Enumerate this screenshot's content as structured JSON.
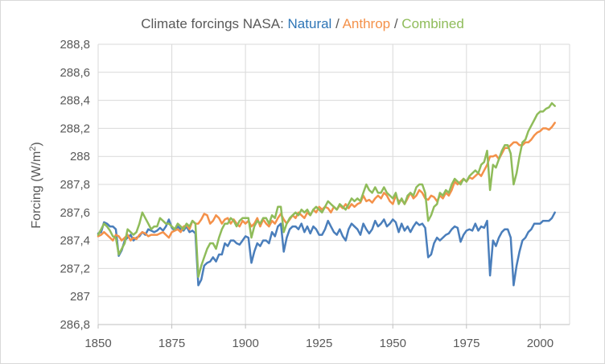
{
  "chart_data": {
    "type": "line",
    "title_parts": [
      {
        "text": "Climate forcings NASA: ",
        "color": "#595959"
      },
      {
        "text": "Natural",
        "color": "#2e75b6"
      },
      {
        "text": " / ",
        "color": "#595959"
      },
      {
        "text": "Anthrop",
        "color": "#f4914a"
      },
      {
        "text": " / ",
        "color": "#595959"
      },
      {
        "text": "Combined",
        "color": "#8fbc5a"
      }
    ],
    "ylabel_main": "Forcing (W/m",
    "ylabel_sup": "2",
    "ylabel_end": ")",
    "xlabel": "",
    "xlim": [
      1850,
      2010
    ],
    "ylim": [
      286.8,
      288.8
    ],
    "x_ticks": [
      1850,
      1875,
      1900,
      1925,
      1950,
      1975,
      2000
    ],
    "y_ticks": [
      "286,8",
      "287",
      "287,2",
      "287,4",
      "287,6",
      "287,8",
      "288",
      "288,2",
      "288,4",
      "288,6",
      "288,8"
    ],
    "y_tick_values": [
      286.8,
      287.0,
      287.2,
      287.4,
      287.6,
      287.8,
      288.0,
      288.2,
      288.4,
      288.6,
      288.8
    ],
    "grid": true,
    "series": [
      {
        "name": "Natural",
        "color": "#4a7ebb",
        "x": [
          1850,
          1851,
          1852,
          1853,
          1854,
          1855,
          1856,
          1857,
          1858,
          1859,
          1860,
          1861,
          1862,
          1863,
          1864,
          1865,
          1866,
          1867,
          1868,
          1869,
          1870,
          1871,
          1872,
          1873,
          1874,
          1875,
          1876,
          1877,
          1878,
          1879,
          1880,
          1881,
          1882,
          1883,
          1884,
          1885,
          1886,
          1887,
          1888,
          1889,
          1890,
          1891,
          1892,
          1893,
          1894,
          1895,
          1896,
          1897,
          1898,
          1899,
          1900,
          1901,
          1902,
          1903,
          1904,
          1905,
          1906,
          1907,
          1908,
          1909,
          1910,
          1911,
          1912,
          1913,
          1914,
          1915,
          1916,
          1917,
          1918,
          1919,
          1920,
          1921,
          1922,
          1923,
          1924,
          1925,
          1926,
          1927,
          1928,
          1929,
          1930,
          1931,
          1932,
          1933,
          1934,
          1935,
          1936,
          1937,
          1938,
          1939,
          1940,
          1941,
          1942,
          1943,
          1944,
          1945,
          1946,
          1947,
          1948,
          1949,
          1950,
          1951,
          1952,
          1953,
          1954,
          1955,
          1956,
          1957,
          1958,
          1959,
          1960,
          1961,
          1962,
          1963,
          1964,
          1965,
          1966,
          1967,
          1968,
          1969,
          1970,
          1971,
          1972,
          1973,
          1974,
          1975,
          1976,
          1977,
          1978,
          1979,
          1980,
          1981,
          1982,
          1983,
          1984,
          1985,
          1986,
          1987,
          1988,
          1989,
          1990,
          1991,
          1992,
          1993,
          1994,
          1995,
          1996,
          1997,
          1998,
          1999,
          2000,
          2001,
          2002,
          2003,
          2004,
          2005
        ],
        "values": [
          287.45,
          287.46,
          287.53,
          287.52,
          287.5,
          287.5,
          287.48,
          287.29,
          287.33,
          287.4,
          287.42,
          287.44,
          287.4,
          287.42,
          287.43,
          287.46,
          287.44,
          287.48,
          287.47,
          287.46,
          287.47,
          287.49,
          287.47,
          287.5,
          287.55,
          287.49,
          287.47,
          287.5,
          287.48,
          287.47,
          287.5,
          287.46,
          287.47,
          287.45,
          287.08,
          287.12,
          287.22,
          287.24,
          287.25,
          287.28,
          287.25,
          287.3,
          287.3,
          287.38,
          287.36,
          287.4,
          287.4,
          287.38,
          287.37,
          287.4,
          287.43,
          287.42,
          287.24,
          287.32,
          287.38,
          287.36,
          287.4,
          287.4,
          287.38,
          287.46,
          287.43,
          287.5,
          287.52,
          287.32,
          287.42,
          287.48,
          287.5,
          287.5,
          287.48,
          287.52,
          287.46,
          287.5,
          287.45,
          287.5,
          287.48,
          287.44,
          287.44,
          287.48,
          287.54,
          287.5,
          287.46,
          287.44,
          287.48,
          287.43,
          287.4,
          287.48,
          287.52,
          287.5,
          287.48,
          287.44,
          287.52,
          287.48,
          287.45,
          287.48,
          287.54,
          287.5,
          287.52,
          287.55,
          287.5,
          287.52,
          287.55,
          287.53,
          287.46,
          287.52,
          287.47,
          287.5,
          287.46,
          287.5,
          287.53,
          287.51,
          287.52,
          287.49,
          287.28,
          287.3,
          287.38,
          287.42,
          287.4,
          287.42,
          287.44,
          287.45,
          287.48,
          287.5,
          287.49,
          287.39,
          287.44,
          287.47,
          287.48,
          287.47,
          287.52,
          287.47,
          287.5,
          287.49,
          287.54,
          287.15,
          287.4,
          287.36,
          287.42,
          287.46,
          287.48,
          287.48,
          287.42,
          287.08,
          287.22,
          287.32,
          287.4,
          287.42,
          287.46,
          287.48,
          287.52,
          287.52,
          287.52,
          287.54,
          287.54,
          287.54,
          287.56,
          287.6
        ]
      },
      {
        "name": "Anthrop",
        "color": "#f4914a",
        "x": [
          1850,
          1851,
          1852,
          1853,
          1854,
          1855,
          1856,
          1857,
          1858,
          1859,
          1860,
          1861,
          1862,
          1863,
          1864,
          1865,
          1866,
          1867,
          1868,
          1869,
          1870,
          1871,
          1872,
          1873,
          1874,
          1875,
          1876,
          1877,
          1878,
          1879,
          1880,
          1881,
          1882,
          1883,
          1884,
          1885,
          1886,
          1887,
          1888,
          1889,
          1890,
          1891,
          1892,
          1893,
          1894,
          1895,
          1896,
          1897,
          1898,
          1899,
          1900,
          1901,
          1902,
          1903,
          1904,
          1905,
          1906,
          1907,
          1908,
          1909,
          1910,
          1911,
          1912,
          1913,
          1914,
          1915,
          1916,
          1917,
          1918,
          1919,
          1920,
          1921,
          1922,
          1923,
          1924,
          1925,
          1926,
          1927,
          1928,
          1929,
          1930,
          1931,
          1932,
          1933,
          1934,
          1935,
          1936,
          1937,
          1938,
          1939,
          1940,
          1941,
          1942,
          1943,
          1944,
          1945,
          1946,
          1947,
          1948,
          1949,
          1950,
          1951,
          1952,
          1953,
          1954,
          1955,
          1956,
          1957,
          1958,
          1959,
          1960,
          1961,
          1962,
          1963,
          1964,
          1965,
          1966,
          1967,
          1968,
          1969,
          1970,
          1971,
          1972,
          1973,
          1974,
          1975,
          1976,
          1977,
          1978,
          1979,
          1980,
          1981,
          1982,
          1983,
          1984,
          1985,
          1986,
          1987,
          1988,
          1989,
          1990,
          1991,
          1992,
          1993,
          1994,
          1995,
          1996,
          1997,
          1998,
          1999,
          2000,
          2001,
          2002,
          2003,
          2004,
          2005
        ],
        "values": [
          287.43,
          287.44,
          287.46,
          287.44,
          287.42,
          287.4,
          287.44,
          287.43,
          287.4,
          287.42,
          287.44,
          287.4,
          287.42,
          287.41,
          287.44,
          287.46,
          287.45,
          287.43,
          287.44,
          287.44,
          287.44,
          287.45,
          287.46,
          287.44,
          287.42,
          287.46,
          287.47,
          287.48,
          287.46,
          287.5,
          287.51,
          287.48,
          287.54,
          287.52,
          287.52,
          287.55,
          287.59,
          287.58,
          287.52,
          287.54,
          287.58,
          287.56,
          287.52,
          287.55,
          287.56,
          287.52,
          287.55,
          287.52,
          287.5,
          287.54,
          287.52,
          287.54,
          287.5,
          287.52,
          287.56,
          287.5,
          287.55,
          287.52,
          287.5,
          287.54,
          287.52,
          287.56,
          287.59,
          287.55,
          287.52,
          287.55,
          287.58,
          287.56,
          287.6,
          287.58,
          287.56,
          287.6,
          287.58,
          287.62,
          287.6,
          287.64,
          287.62,
          287.64,
          287.63,
          287.6,
          287.64,
          287.62,
          287.65,
          287.63,
          287.66,
          287.63,
          287.66,
          287.64,
          287.66,
          287.67,
          287.72,
          287.68,
          287.69,
          287.67,
          287.7,
          287.72,
          287.7,
          287.74,
          287.72,
          287.68,
          287.66,
          287.72,
          287.68,
          287.69,
          287.66,
          287.7,
          287.74,
          287.7,
          287.72,
          287.76,
          287.74,
          287.7,
          287.69,
          287.72,
          287.71,
          287.68,
          287.72,
          287.7,
          287.74,
          287.72,
          287.76,
          287.82,
          287.8,
          287.82,
          287.84,
          287.82,
          287.85,
          287.84,
          287.86,
          287.88,
          287.86,
          287.9,
          287.94,
          288.0,
          288.0,
          288.01,
          287.98,
          288.02,
          288.06,
          288.06,
          288.08,
          288.1,
          288.1,
          288.08,
          288.08,
          288.1,
          288.1,
          288.12,
          288.15,
          288.17,
          288.18,
          288.2,
          288.2,
          288.19,
          288.21,
          288.24
        ]
      },
      {
        "name": "Combined",
        "color": "#8fbc5a",
        "x": [
          1850,
          1851,
          1852,
          1853,
          1854,
          1855,
          1856,
          1857,
          1858,
          1859,
          1860,
          1861,
          1862,
          1863,
          1864,
          1865,
          1866,
          1867,
          1868,
          1869,
          1870,
          1871,
          1872,
          1873,
          1874,
          1875,
          1876,
          1877,
          1878,
          1879,
          1880,
          1881,
          1882,
          1883,
          1884,
          1885,
          1886,
          1887,
          1888,
          1889,
          1890,
          1891,
          1892,
          1893,
          1894,
          1895,
          1896,
          1897,
          1898,
          1899,
          1900,
          1901,
          1902,
          1903,
          1904,
          1905,
          1906,
          1907,
          1908,
          1909,
          1910,
          1911,
          1912,
          1913,
          1914,
          1915,
          1916,
          1917,
          1918,
          1919,
          1920,
          1921,
          1922,
          1923,
          1924,
          1925,
          1926,
          1927,
          1928,
          1929,
          1930,
          1931,
          1932,
          1933,
          1934,
          1935,
          1936,
          1937,
          1938,
          1939,
          1940,
          1941,
          1942,
          1943,
          1944,
          1945,
          1946,
          1947,
          1948,
          1949,
          1950,
          1951,
          1952,
          1953,
          1954,
          1955,
          1956,
          1957,
          1958,
          1959,
          1960,
          1961,
          1962,
          1963,
          1964,
          1965,
          1966,
          1967,
          1968,
          1969,
          1970,
          1971,
          1972,
          1973,
          1974,
          1975,
          1976,
          1977,
          1978,
          1979,
          1980,
          1981,
          1982,
          1983,
          1984,
          1985,
          1986,
          1987,
          1988,
          1989,
          1990,
          1991,
          1992,
          1993,
          1994,
          1995,
          1996,
          1997,
          1998,
          1999,
          2000,
          2001,
          2002,
          2003,
          2004,
          2005
        ],
        "values": [
          287.44,
          287.48,
          287.52,
          287.5,
          287.47,
          287.43,
          287.42,
          287.3,
          287.34,
          287.38,
          287.48,
          287.46,
          287.44,
          287.46,
          287.52,
          287.6,
          287.56,
          287.52,
          287.48,
          287.5,
          287.5,
          287.56,
          287.54,
          287.52,
          287.52,
          287.5,
          287.48,
          287.52,
          287.5,
          287.48,
          287.52,
          287.5,
          287.54,
          287.52,
          287.14,
          287.22,
          287.28,
          287.34,
          287.38,
          287.38,
          287.34,
          287.42,
          287.48,
          287.52,
          287.52,
          287.56,
          287.54,
          287.5,
          287.54,
          287.56,
          287.56,
          287.56,
          287.42,
          287.5,
          287.54,
          287.52,
          287.56,
          287.56,
          287.52,
          287.58,
          287.56,
          287.64,
          287.64,
          287.46,
          287.52,
          287.56,
          287.58,
          287.6,
          287.58,
          287.62,
          287.6,
          287.62,
          287.58,
          287.62,
          287.64,
          287.62,
          287.6,
          287.64,
          287.68,
          287.66,
          287.64,
          287.62,
          287.66,
          287.64,
          287.62,
          287.66,
          287.7,
          287.68,
          287.7,
          287.68,
          287.74,
          287.8,
          287.76,
          287.74,
          287.78,
          287.74,
          287.74,
          287.78,
          287.74,
          287.72,
          287.7,
          287.74,
          287.66,
          287.7,
          287.66,
          287.72,
          287.74,
          287.72,
          287.78,
          287.8,
          287.8,
          287.74,
          287.54,
          287.58,
          287.64,
          287.66,
          287.74,
          287.72,
          287.76,
          287.74,
          287.8,
          287.84,
          287.82,
          287.8,
          287.84,
          287.82,
          287.86,
          287.88,
          287.9,
          287.88,
          287.94,
          287.96,
          288.04,
          287.76,
          287.94,
          287.92,
          287.98,
          288.04,
          288.08,
          288.08,
          288.02,
          287.8,
          287.88,
          288.0,
          288.1,
          288.12,
          288.18,
          288.22,
          288.26,
          288.3,
          288.32,
          288.32,
          288.34,
          288.35,
          288.38,
          288.36
        ]
      }
    ]
  }
}
